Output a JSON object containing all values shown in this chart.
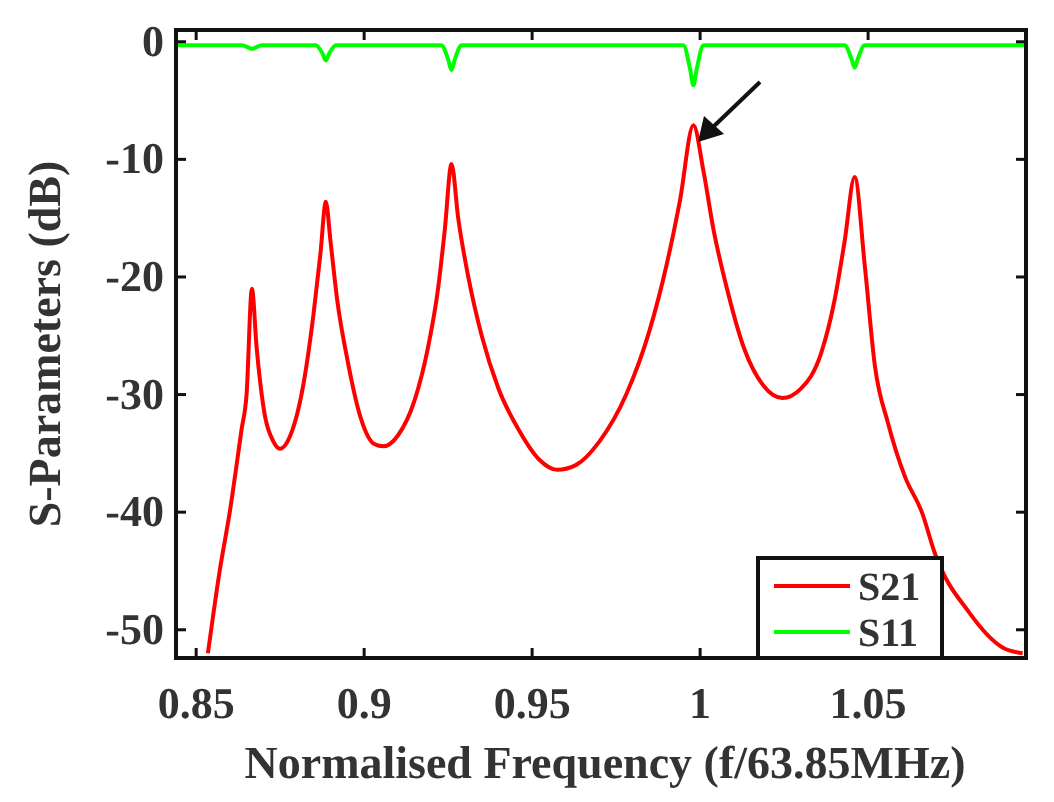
{
  "chart_data": {
    "type": "line",
    "xlabel": "Normalised Frequency (f/63.85MHz)",
    "ylabel": "S-Parameters (dB)",
    "xlim": [
      0.844,
      1.097
    ],
    "ylim": [
      -52.4,
      1
    ],
    "xticks": [
      0.85,
      0.9,
      0.95,
      1,
      1.05
    ],
    "yticks": [
      0,
      -10,
      -20,
      -30,
      -40,
      -50
    ],
    "grid": false,
    "legend": "bottom right",
    "line_style": "solid",
    "marker": "none",
    "series": [
      {
        "name": "S21",
        "color": "#ff0000",
        "x": [
          0.8535,
          0.857,
          0.86,
          0.8635,
          0.865,
          0.8666,
          0.868,
          0.87,
          0.873,
          0.875,
          0.878,
          0.882,
          0.885,
          0.887,
          0.8886,
          0.89,
          0.892,
          0.895,
          0.899,
          0.903,
          0.9057,
          0.91,
          0.915,
          0.919,
          0.922,
          0.924,
          0.926,
          0.928,
          0.931,
          0.935,
          0.94,
          0.946,
          0.952,
          0.9575,
          0.963,
          0.97,
          0.978,
          0.985,
          0.99,
          0.994,
          0.998,
          1.001,
          1.004,
          1.008,
          1.013,
          1.019,
          1.0245,
          1.03,
          1.036,
          1.04,
          1.043,
          1.046,
          1.049,
          1.052,
          1.056,
          1.061,
          1.066,
          1.07,
          1.08,
          1.09,
          1.096
        ],
        "values": [
          -52,
          -45,
          -40,
          -33,
          -30,
          -21,
          -26,
          -31,
          -34,
          -34.6,
          -33.5,
          -29,
          -23,
          -18,
          -13.6,
          -17,
          -22,
          -27,
          -32,
          -34.2,
          -34.4,
          -33.5,
          -30.5,
          -26,
          -21,
          -16,
          -10.4,
          -15,
          -20,
          -25,
          -29.5,
          -33,
          -35.5,
          -36.4,
          -36,
          -34,
          -30,
          -24.5,
          -19,
          -13.5,
          -7.1,
          -11,
          -16,
          -21,
          -26,
          -29.3,
          -30.3,
          -29.5,
          -26.5,
          -22,
          -17,
          -11.5,
          -19,
          -27.5,
          -32.5,
          -37,
          -40,
          -43.6,
          -48.5,
          -51.5,
          -52
        ]
      },
      {
        "name": "S11",
        "color": "#00ff00",
        "x": [
          0.844,
          0.8636,
          0.8656,
          0.8666,
          0.8676,
          0.8696,
          0.8856,
          0.8876,
          0.8886,
          0.8896,
          0.8916,
          0.923,
          0.925,
          0.926,
          0.927,
          0.929,
          0.995,
          0.997,
          0.998,
          0.999,
          1.001,
          1.043,
          1.045,
          1.046,
          1.047,
          1.049,
          1.097
        ],
        "values": [
          -0.3,
          -0.3,
          -0.5,
          -0.6,
          -0.5,
          -0.3,
          -0.3,
          -1.0,
          -1.6,
          -1.0,
          -0.3,
          -0.3,
          -1.5,
          -2.4,
          -1.5,
          -0.3,
          -0.3,
          -2.3,
          -3.7,
          -2.3,
          -0.3,
          -0.3,
          -1.4,
          -2.2,
          -1.4,
          -0.3,
          -0.3
        ]
      }
    ]
  }
}
